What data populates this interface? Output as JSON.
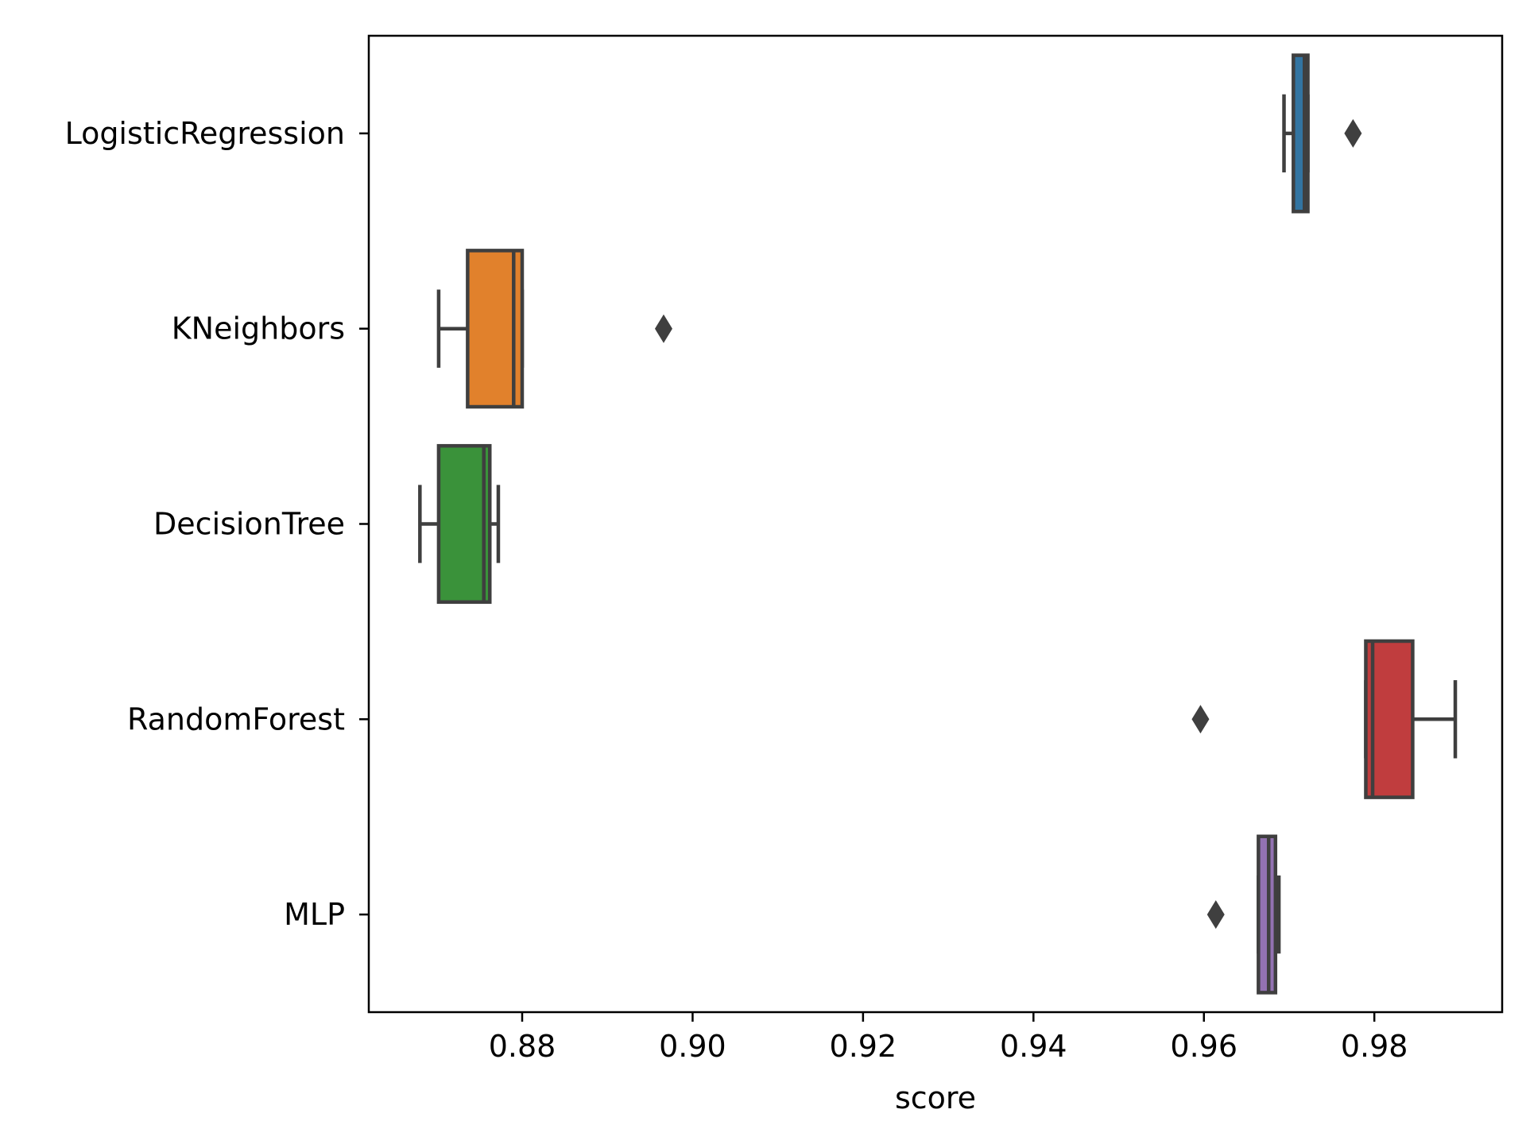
{
  "chart_data": {
    "type": "boxplot",
    "orientation": "horizontal",
    "title": "",
    "xlabel": "score",
    "ylabel": "",
    "xlim": [
      0.862,
      0.995
    ],
    "xticks": [
      0.88,
      0.9,
      0.92,
      0.94,
      0.96,
      0.98
    ],
    "xtick_labels": [
      "0.88",
      "0.90",
      "0.92",
      "0.94",
      "0.96",
      "0.98"
    ],
    "grid": false,
    "categories": [
      "LogisticRegression",
      "KNeighbors",
      "DecisionTree",
      "RandomForest",
      "MLP"
    ],
    "series": [
      {
        "category": "LogisticRegression",
        "color": "#3274a1",
        "whisker_low": 0.9694,
        "q1": 0.9705,
        "median": 0.9718,
        "q3": 0.9722,
        "whisker_high": 0.9722,
        "outliers": [
          0.9775
        ]
      },
      {
        "category": "KNeighbors",
        "color": "#e1812c",
        "whisker_low": 0.8702,
        "q1": 0.8736,
        "median": 0.879,
        "q3": 0.88,
        "whisker_high": 0.88,
        "outliers": [
          0.8966
        ]
      },
      {
        "category": "DecisionTree",
        "color": "#3a923a",
        "whisker_low": 0.868,
        "q1": 0.8702,
        "median": 0.8755,
        "q3": 0.8762,
        "whisker_high": 0.8772,
        "outliers": []
      },
      {
        "category": "RandomForest",
        "color": "#c03d3e",
        "whisker_low": 0.979,
        "q1": 0.979,
        "median": 0.9798,
        "q3": 0.9845,
        "whisker_high": 0.9895,
        "outliers": [
          0.9596
        ]
      },
      {
        "category": "MLP",
        "color": "#9372b2",
        "whisker_low": 0.9664,
        "q1": 0.9664,
        "median": 0.9676,
        "q3": 0.9684,
        "whisker_high": 0.9688,
        "outliers": [
          0.9614
        ]
      }
    ]
  }
}
